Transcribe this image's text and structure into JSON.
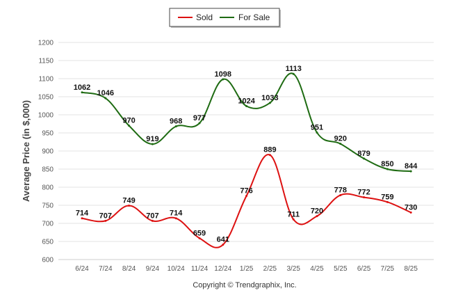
{
  "chart_data": {
    "type": "line",
    "categories": [
      "6/24",
      "7/24",
      "8/24",
      "9/24",
      "10/24",
      "11/24",
      "12/24",
      "1/25",
      "2/25",
      "3/25",
      "4/25",
      "5/25",
      "6/25",
      "7/25",
      "8/25"
    ],
    "series": [
      {
        "name": "Sold",
        "color": "#dd1111",
        "values": [
          714,
          707,
          749,
          707,
          714,
          659,
          641,
          776,
          889,
          711,
          720,
          778,
          772,
          759,
          730
        ],
        "labels": [
          "714",
          "707",
          "749",
          "707",
          "714",
          "659",
          "641",
          "776",
          "889",
          "711",
          "720",
          "778",
          "772",
          "759",
          "730"
        ]
      },
      {
        "name": "For Sale",
        "color": "#1e6b12",
        "values": [
          1062,
          1046,
          970,
          919,
          968,
          977,
          1098,
          1024,
          1033,
          1113,
          951,
          920,
          879,
          850,
          844
        ],
        "labels": [
          "1062",
          "1046",
          "970",
          "919",
          "968",
          "977",
          "1098",
          "1024",
          "1033",
          "1113",
          "951",
          "920",
          "879",
          "850",
          "844"
        ]
      }
    ],
    "ylabel": "Average Price (in $,000)",
    "ylim": [
      600,
      1200
    ],
    "yticks": [
      600,
      650,
      700,
      750,
      800,
      850,
      900,
      950,
      1000,
      1050,
      1100,
      1150,
      1200
    ],
    "ytick_labels": [
      "600",
      "650",
      "700",
      "750",
      "800",
      "850",
      "900",
      "950",
      "1000",
      "1050",
      "1100",
      "1150",
      "1200"
    ],
    "grid": true,
    "legend_position": "top-center",
    "credit": "Copyright © Trendgraphix, Inc."
  }
}
